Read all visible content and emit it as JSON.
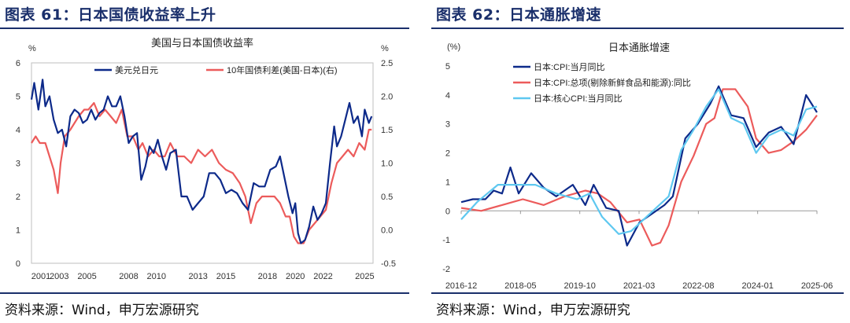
{
  "figures": [
    {
      "figure_title": "图表 61：日本国债收益率上升",
      "source": "资料来源：Wind，申万宏源研究",
      "chart_data": {
        "type": "line",
        "title": "美国与日本国债收益率",
        "left_unit": "%",
        "right_unit": "%",
        "x_ticks": [
          "2001",
          "2003",
          "2005",
          "2008",
          "2010",
          "2013",
          "2015",
          "2018",
          "2020",
          "2022",
          "2025"
        ],
        "x_range": [
          2001.0,
          2025.6
        ],
        "ylim_left": [
          0,
          6
        ],
        "ylim_right": [
          -0.5,
          2.5
        ],
        "yticks_left": [
          "0",
          "1",
          "2",
          "3",
          "4",
          "5",
          "6"
        ],
        "yticks_right": [
          "-0.5",
          "0.0",
          "0.5",
          "1.0",
          "1.5",
          "2.0",
          "2.5"
        ],
        "colors": {
          "series_1": "#0d2a8a",
          "series_2": "#ec5b5b"
        },
        "series": [
          {
            "name": "美元兑日元",
            "axis": "left",
            "x": [
              2001.0,
              2001.2,
              2001.5,
              2001.8,
              2002.0,
              2002.3,
              2002.6,
              2002.9,
              2003.2,
              2003.5,
              2003.8,
              2004.1,
              2004.4,
              2004.7,
              2005.0,
              2005.3,
              2005.6,
              2005.9,
              2006.2,
              2006.5,
              2006.8,
              2007.1,
              2007.4,
              2007.7,
              2008.0,
              2008.3,
              2008.6,
              2008.9,
              2009.2,
              2009.5,
              2009.8,
              2010.1,
              2010.4,
              2010.7,
              2011.0,
              2011.4,
              2011.8,
              2012.2,
              2012.6,
              2013.0,
              2013.4,
              2013.8,
              2014.2,
              2014.6,
              2015.0,
              2015.4,
              2015.8,
              2016.2,
              2016.6,
              2017.0,
              2017.4,
              2017.8,
              2018.2,
              2018.6,
              2018.9,
              2019.2,
              2019.5,
              2019.8,
              2020.0,
              2020.2,
              2020.4,
              2020.7,
              2021.0,
              2021.3,
              2021.6,
              2021.9,
              2022.2,
              2022.5,
              2022.8,
              2023.0,
              2023.3,
              2023.6,
              2023.9,
              2024.2,
              2024.5,
              2024.8,
              2025.0,
              2025.3,
              2025.5
            ],
            "y": [
              4.9,
              5.4,
              4.6,
              5.5,
              4.7,
              5.0,
              4.3,
              3.9,
              4.0,
              3.5,
              4.4,
              4.6,
              4.5,
              4.2,
              4.3,
              4.6,
              4.3,
              4.5,
              4.6,
              5.0,
              4.7,
              4.7,
              5.0,
              4.4,
              3.6,
              3.8,
              3.9,
              2.5,
              2.9,
              3.5,
              3.3,
              3.7,
              3.2,
              2.8,
              3.3,
              3.4,
              2.0,
              2.0,
              1.6,
              1.8,
              2.0,
              2.7,
              2.7,
              2.5,
              2.1,
              2.2,
              2.1,
              1.8,
              1.6,
              2.4,
              2.3,
              2.3,
              2.8,
              2.9,
              3.2,
              2.6,
              2.0,
              1.5,
              1.8,
              0.9,
              0.6,
              0.7,
              1.1,
              1.7,
              1.3,
              1.5,
              1.8,
              3.0,
              4.1,
              3.5,
              3.8,
              4.3,
              4.8,
              4.2,
              4.4,
              3.8,
              4.6,
              4.2,
              4.4
            ]
          },
          {
            "name": "10年国债利差(美国-日本)(右)",
            "axis": "right",
            "x": [
              2001.0,
              2001.3,
              2001.6,
              2002.0,
              2002.3,
              2002.6,
              2002.9,
              2003.1,
              2003.4,
              2003.8,
              2004.1,
              2004.4,
              2004.8,
              2005.1,
              2005.5,
              2005.9,
              2006.3,
              2006.7,
              2007.1,
              2007.5,
              2007.9,
              2008.3,
              2008.7,
              2009.0,
              2009.4,
              2009.8,
              2010.2,
              2010.6,
              2011.0,
              2011.5,
              2012.0,
              2012.5,
              2013.0,
              2013.5,
              2014.0,
              2014.5,
              2015.0,
              2015.5,
              2016.0,
              2016.4,
              2016.8,
              2017.2,
              2017.6,
              2018.0,
              2018.5,
              2018.9,
              2019.3,
              2019.6,
              2019.9,
              2020.2,
              2020.6,
              2021.0,
              2021.4,
              2021.8,
              2022.2,
              2022.6,
              2023.0,
              2023.4,
              2023.8,
              2024.2,
              2024.6,
              2025.0,
              2025.3,
              2025.5
            ],
            "y": [
              1.3,
              1.4,
              1.3,
              1.3,
              1.1,
              0.9,
              0.55,
              1.0,
              1.4,
              1.5,
              1.6,
              1.7,
              1.8,
              1.8,
              1.9,
              1.7,
              1.8,
              1.7,
              1.6,
              1.8,
              1.4,
              1.4,
              1.2,
              1.3,
              1.1,
              1.2,
              1.1,
              1.1,
              1.3,
              1.1,
              1.1,
              1.0,
              1.2,
              1.1,
              1.2,
              1.0,
              0.9,
              0.85,
              0.7,
              0.5,
              0.1,
              0.4,
              0.5,
              0.5,
              0.5,
              0.4,
              0.2,
              0.2,
              -0.1,
              -0.2,
              -0.2,
              0.0,
              0.1,
              0.2,
              0.3,
              0.7,
              1.0,
              1.1,
              1.2,
              1.1,
              1.3,
              1.2,
              1.5,
              1.5
            ]
          }
        ]
      }
    },
    {
      "figure_title": "图表 62：日本通胀增速",
      "source": "资料来源：Wind，申万宏源研究",
      "chart_data": {
        "type": "line",
        "title": "日本通胀增速",
        "left_unit": "(%)",
        "x_ticks": [
          "2016-12",
          "2018-05",
          "2019-10",
          "2021-03",
          "2022-08",
          "2024-01",
          "2025-06"
        ],
        "x_range": [
          2016.92,
          2025.46
        ],
        "ylim": [
          -2,
          5
        ],
        "yticks": [
          "-2",
          "-1",
          "0",
          "1",
          "2",
          "3",
          "4",
          "5"
        ],
        "colors": {
          "series_1": "#0d2a8a",
          "series_2": "#ec5b5b",
          "series_3": "#5ec8f0"
        },
        "series": [
          {
            "name": "日本:CPI:当月同比",
            "x": [
              2016.92,
              2017.2,
              2017.5,
              2017.7,
              2017.9,
              2018.1,
              2018.3,
              2018.6,
              2018.9,
              2019.2,
              2019.6,
              2019.9,
              2020.1,
              2020.4,
              2020.7,
              2020.9,
              2021.2,
              2021.5,
              2021.8,
              2022.0,
              2022.3,
              2022.6,
              2022.9,
              2023.1,
              2023.4,
              2023.7,
              2024.0,
              2024.3,
              2024.6,
              2024.9,
              2025.2,
              2025.46
            ],
            "y": [
              0.3,
              0.4,
              0.4,
              0.7,
              0.6,
              1.5,
              0.6,
              1.3,
              0.8,
              0.5,
              0.9,
              0.2,
              0.9,
              0.1,
              0.0,
              -1.2,
              -0.4,
              -0.1,
              0.2,
              0.5,
              2.5,
              3.0,
              3.7,
              4.3,
              3.3,
              3.2,
              2.2,
              2.7,
              2.9,
              2.3,
              4.0,
              3.4
            ]
          },
          {
            "name": "日本:CPI:总项(剔除新鲜食品和能源):同比",
            "x": [
              2016.92,
              2017.4,
              2017.9,
              2018.4,
              2018.9,
              2019.4,
              2019.9,
              2020.2,
              2020.5,
              2020.9,
              2021.2,
              2021.5,
              2021.7,
              2021.9,
              2022.2,
              2022.5,
              2022.8,
              2023.0,
              2023.2,
              2023.5,
              2023.8,
              2024.0,
              2024.3,
              2024.6,
              2024.9,
              2025.2,
              2025.46
            ],
            "y": [
              0.1,
              0.0,
              0.2,
              0.4,
              0.2,
              0.5,
              0.7,
              0.6,
              0.3,
              -0.4,
              -0.3,
              -1.2,
              -1.1,
              -0.5,
              1.0,
              1.9,
              3.0,
              3.2,
              4.2,
              4.2,
              3.6,
              2.5,
              2.0,
              2.1,
              2.4,
              2.8,
              3.3
            ]
          },
          {
            "name": "日本:核心CPI:当月同比",
            "x": [
              2016.92,
              2017.3,
              2017.8,
              2018.2,
              2018.7,
              2019.2,
              2019.7,
              2020.0,
              2020.3,
              2020.7,
              2021.0,
              2021.3,
              2021.6,
              2021.9,
              2022.2,
              2022.5,
              2022.8,
              2023.1,
              2023.4,
              2023.7,
              2024.0,
              2024.3,
              2024.6,
              2024.9,
              2025.2,
              2025.46
            ],
            "y": [
              -0.3,
              0.3,
              0.9,
              0.9,
              0.9,
              0.6,
              0.4,
              0.6,
              -0.2,
              -0.8,
              -0.7,
              -0.3,
              0.1,
              0.5,
              2.1,
              2.8,
              3.6,
              4.2,
              3.2,
              3.0,
              2.0,
              2.6,
              2.8,
              2.6,
              3.5,
              3.6
            ]
          }
        ]
      }
    }
  ]
}
